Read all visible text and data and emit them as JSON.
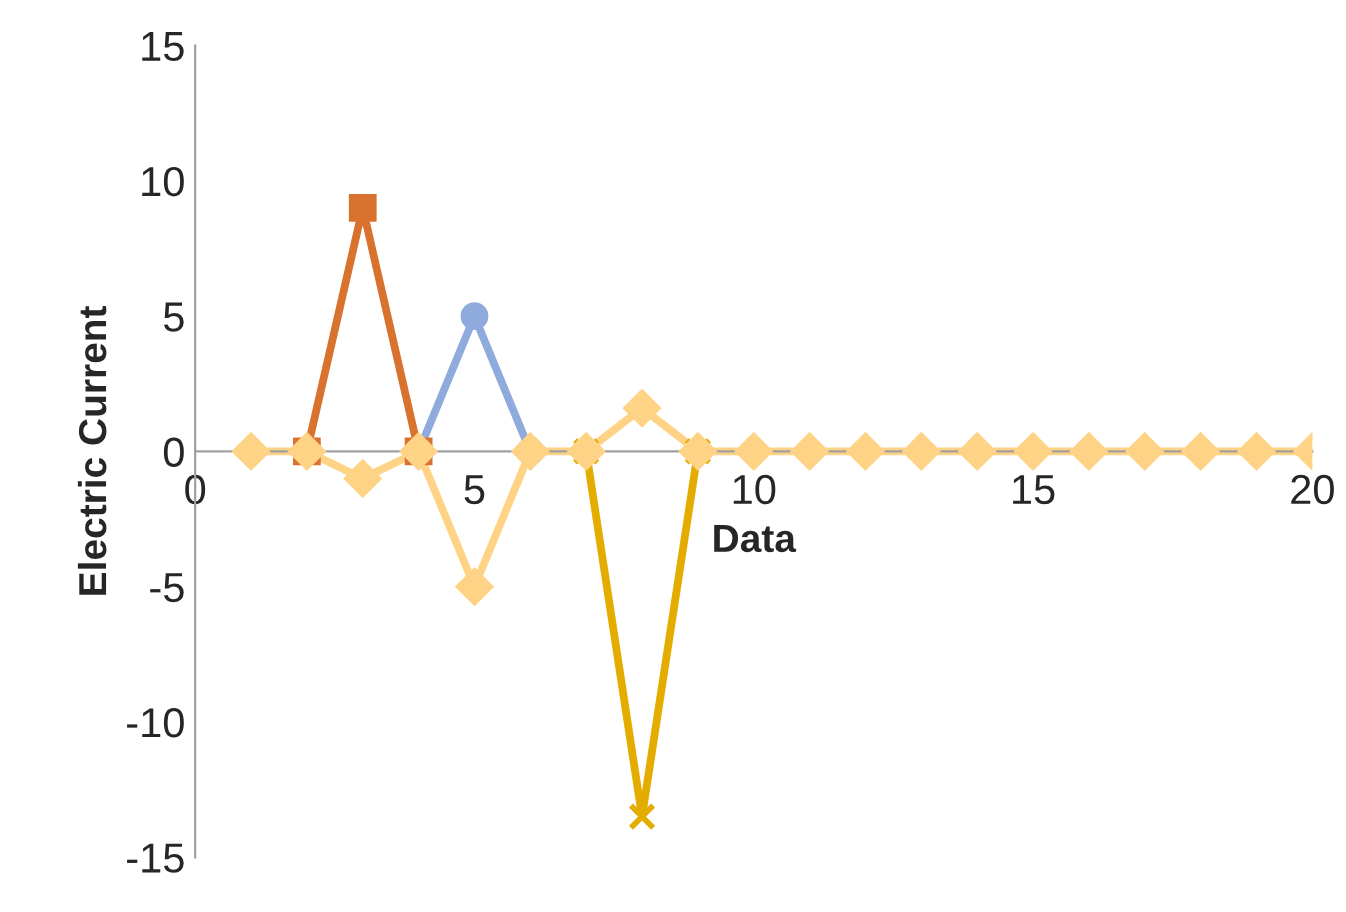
{
  "chart_data": {
    "type": "line",
    "xlabel": "Data",
    "ylabel": "Electric Current",
    "x": [
      1,
      2,
      3,
      4,
      5,
      6,
      7,
      8,
      9,
      10,
      11,
      12,
      13,
      14,
      15,
      16,
      17,
      18,
      19,
      20
    ],
    "xlim": [
      0,
      20
    ],
    "xticks": [
      0,
      5,
      10,
      15,
      20
    ],
    "ylim": [
      -15,
      15
    ],
    "yticks": [
      -15,
      -10,
      -5,
      0,
      5,
      10,
      15
    ],
    "grid": false,
    "legend": false,
    "series": [
      {
        "color": "#d9722e",
        "marker": "square",
        "values": [
          null,
          0,
          9,
          0,
          null,
          null,
          null,
          null,
          null,
          null,
          null,
          null,
          null,
          null,
          null,
          null,
          null,
          null,
          null,
          null
        ]
      },
      {
        "color": "#8faadc",
        "marker": "circle",
        "values": [
          null,
          null,
          null,
          0,
          5,
          0,
          null,
          null,
          null,
          null,
          null,
          null,
          null,
          null,
          null,
          null,
          null,
          null,
          null,
          null
        ]
      },
      {
        "color": "#e5ac00",
        "marker": "cross",
        "values": [
          null,
          null,
          null,
          null,
          null,
          null,
          0,
          -13.5,
          0,
          null,
          null,
          null,
          null,
          null,
          null,
          null,
          null,
          null,
          null,
          null
        ]
      },
      {
        "color": "#ffd385",
        "marker": "diamond",
        "values": [
          0,
          0,
          -1,
          0,
          -5,
          0,
          0,
          1.6,
          0,
          0,
          0,
          0,
          0,
          0,
          0,
          0,
          0,
          0,
          0,
          0
        ]
      }
    ]
  }
}
